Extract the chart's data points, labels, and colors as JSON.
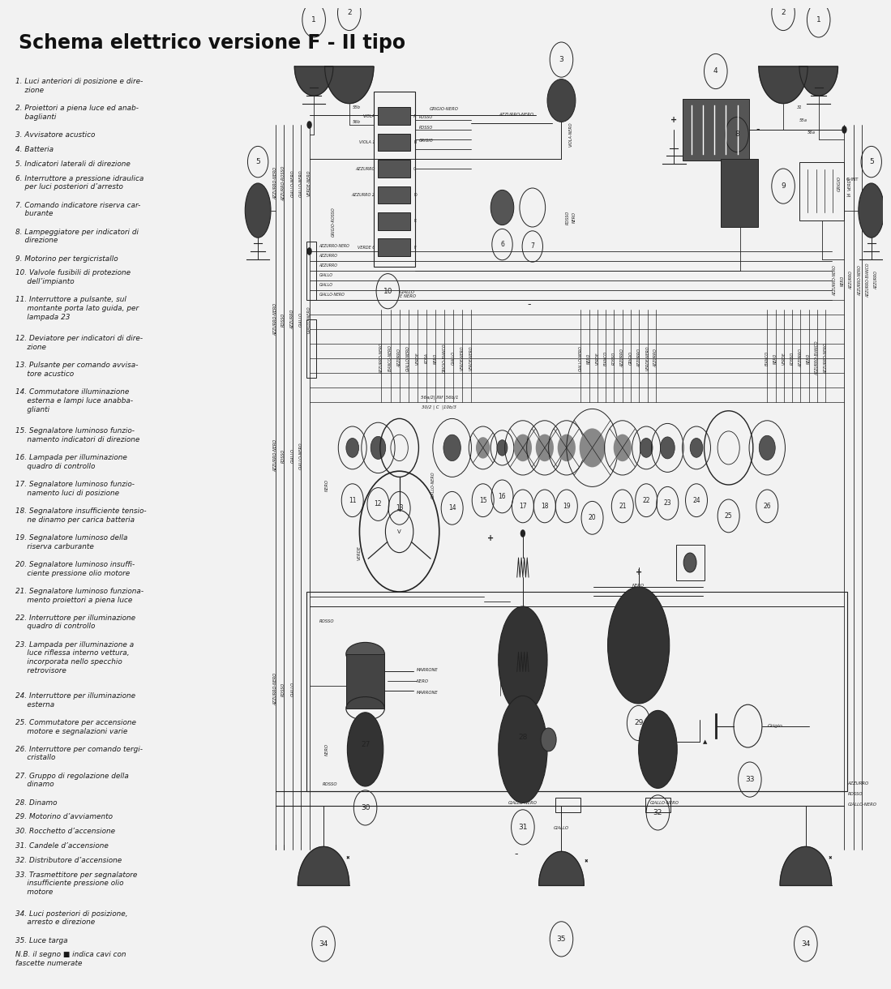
{
  "title": "Schema elettrico versione F - II tipo",
  "title_fontsize": 17,
  "bg_color": "#f2f2f2",
  "text_color": "#1a1a1a",
  "legend_items": [
    "1. Luci anteriori di posizione e dire-\n    zione",
    "2. Proiettori a piena luce ed anab-\n    baglianti",
    "3. Avvisatore acustico",
    "4. Batteria",
    "5. Indicatori laterali di direzione",
    "6. Interruttore a pressione idraulica\n    per luci posteriori d’arresto",
    "7. Comando indicatore riserva car-\n    burante",
    "8. Lampeggiatore per indicatori di\n    direzione",
    "9. Motorino per tergicristallo",
    "10. Valvole fusibili di protezione\n     dell’impianto",
    "11. Interruttore a pulsante, sul\n     montante porta lato guida, per\n     lampada 23",
    "12. Deviatore per indicatori di dire-\n     zione",
    "13. Pulsante per comando avvisa-\n     tore acustico",
    "14. Commutatore illuminazione\n     esterna e lampi luce anabba-\n     glianti",
    "15. Segnalatore luminoso funzio-\n     namento indicatori di direzione",
    "16. Lampada per illuminazione\n     quadro di controllo",
    "17. Segnalatore luminoso funzio-\n     namento luci di posizione",
    "18. Segnalatore insufficiente tensio-\n     ne dinamo per carica batteria",
    "19. Segnalatore luminoso della\n     riserva carburante",
    "20. Segnalatore luminoso insuffi-\n     ciente pressione olio motore",
    "21. Segnalatore luminoso funziona-\n     mento proiettori a piena luce",
    "22. Interruttore per illuminazione\n     quadro di controllo",
    "23. Lampada per illuminazione a\n     luce riflessa interno vettura,\n     incorporata nello specchio\n     retrovisore",
    "24. Interruttore per illuminazione\n     esterna",
    "25. Commutatore per accensione\n     motore e segnalazioni varie",
    "26. Interruttore per comando tergi-\n     cristallo",
    "27. Gruppo di regolazione della\n     dinamo",
    "28. Dinamo",
    "29. Motorino d’avviamento",
    "30. Rocchetto d’accensione",
    "31. Candele d’accensione",
    "32. Distributore d’accensione",
    "33. Trasmettitore per segnalatore\n     insufficiente pressione olio\n     motore",
    "34. Luci posteriori di posizione,\n     arresto e direzione",
    "35. Luce targa",
    "N.B. il segno ■ indica cavi con\nfascette numerate"
  ]
}
